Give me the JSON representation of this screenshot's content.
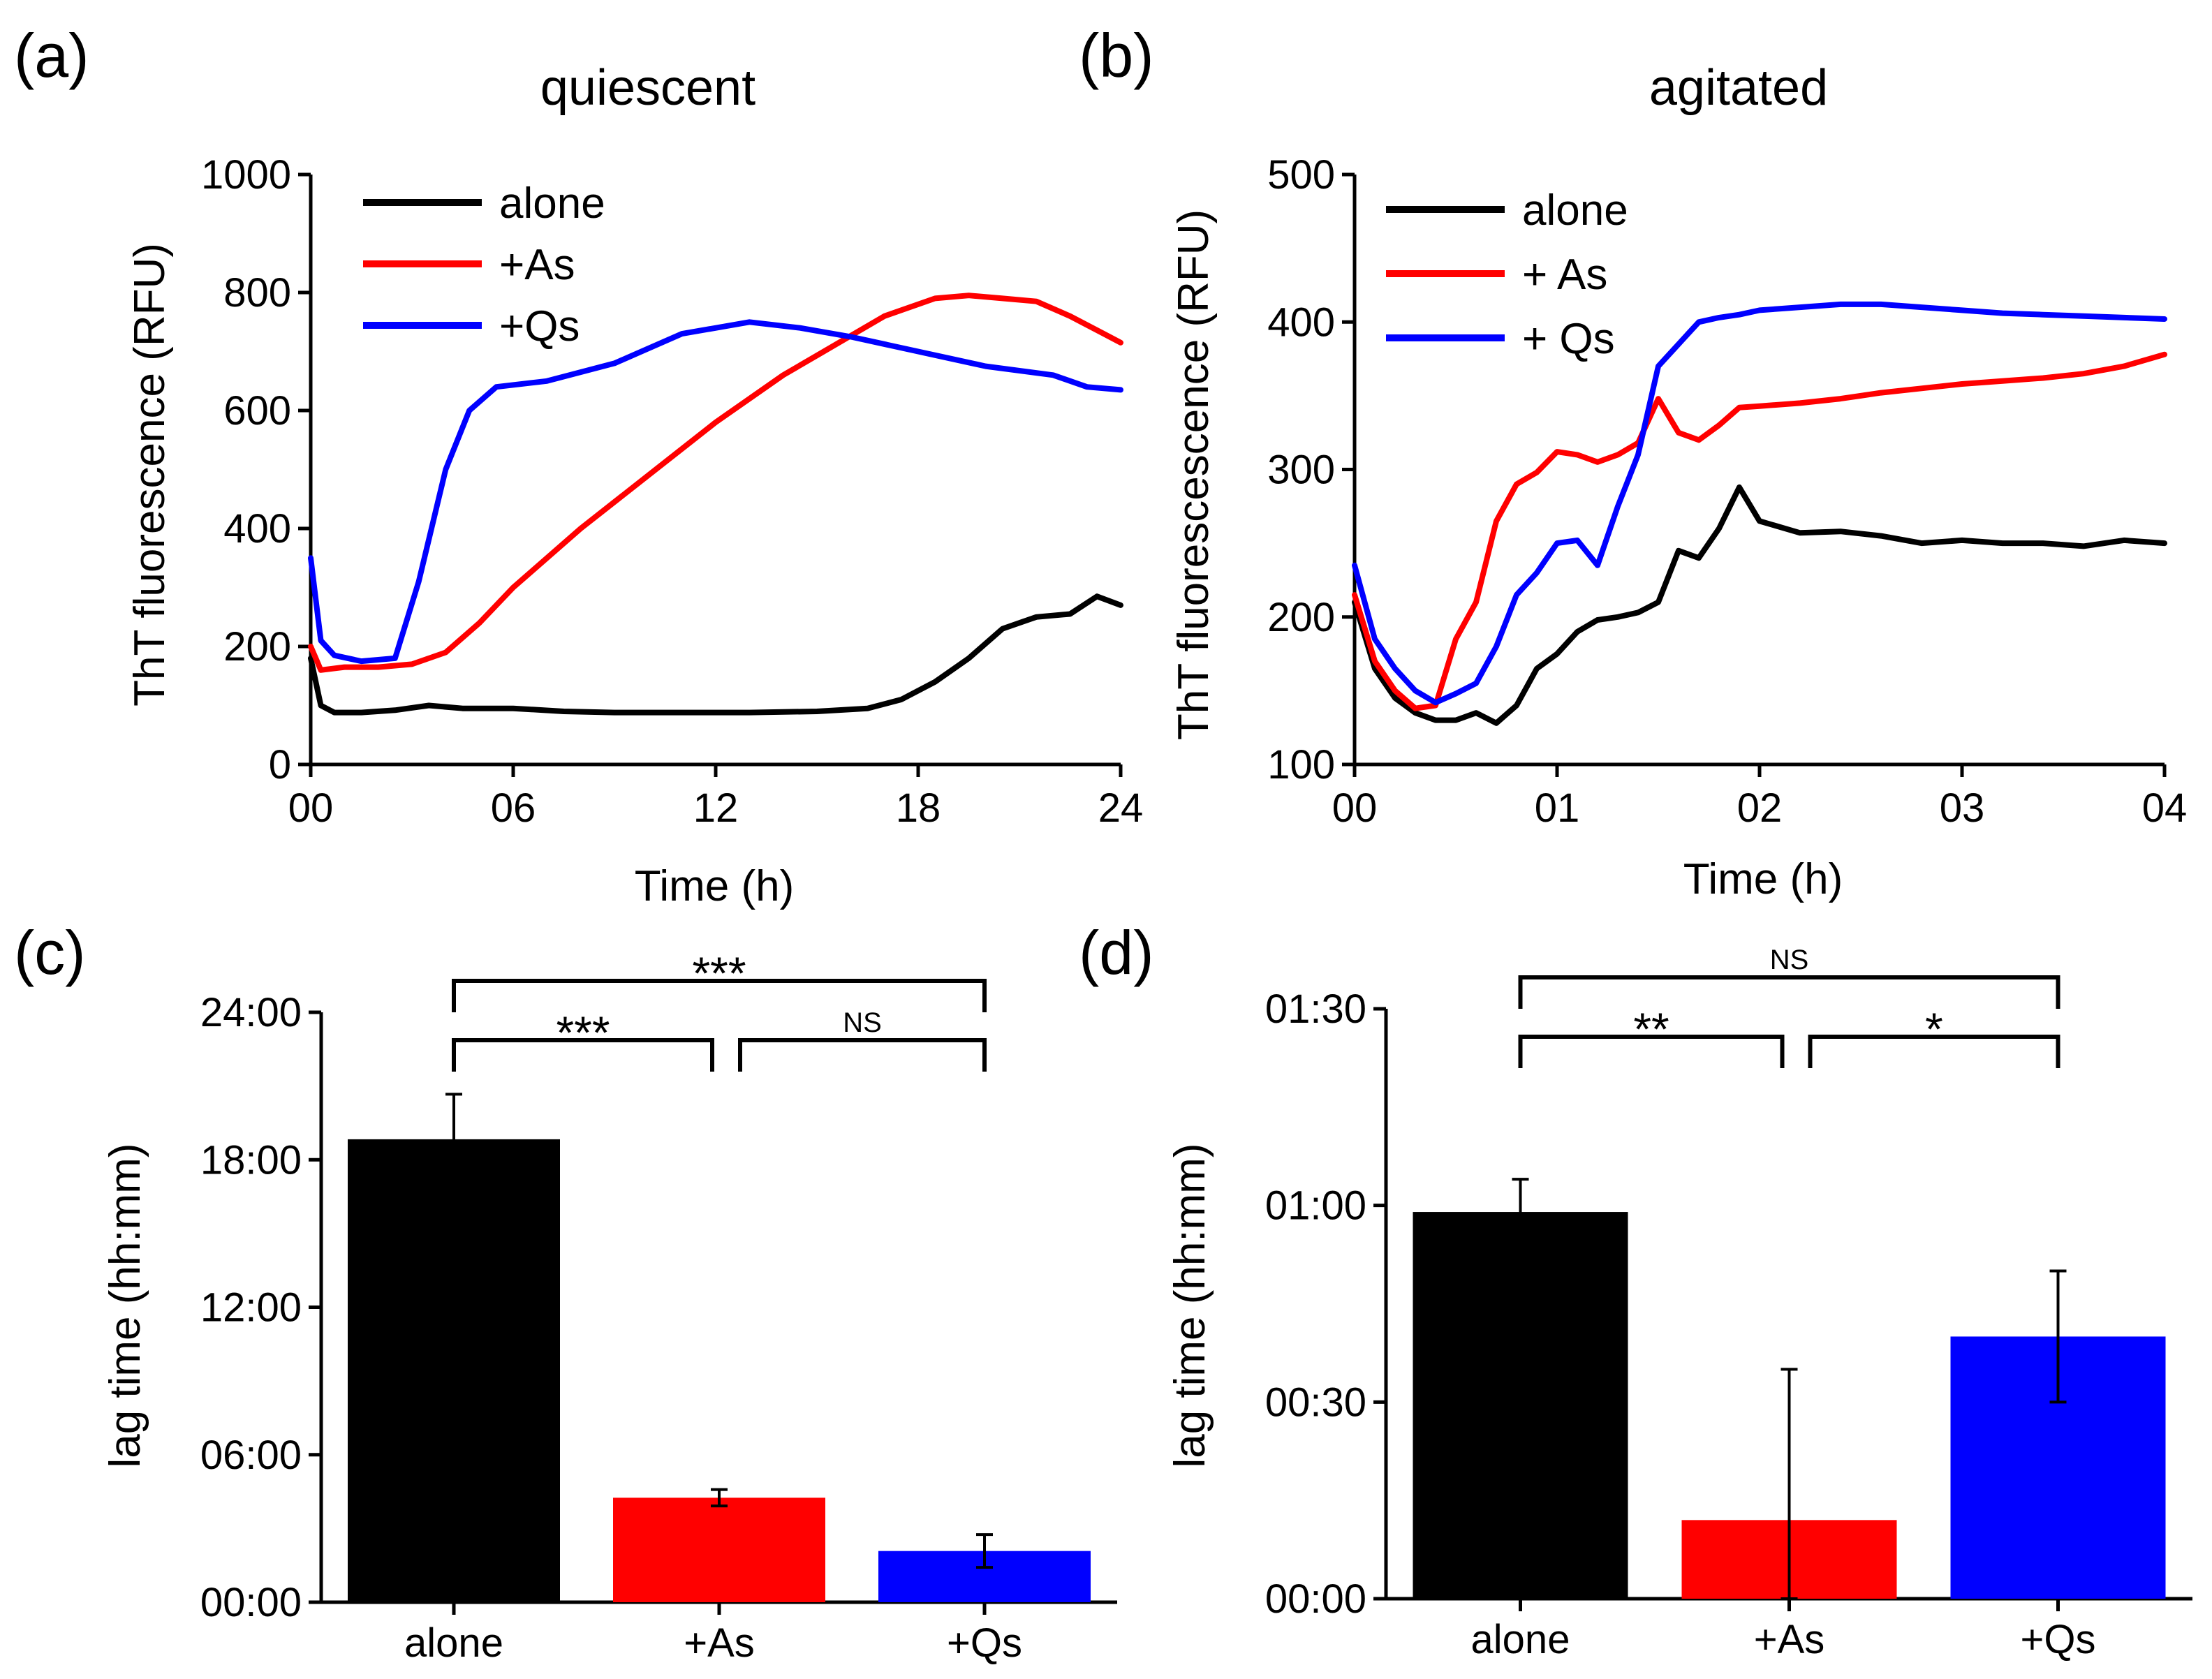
{
  "chart_data": [
    {
      "panel": "(a)",
      "type": "line",
      "title": "quiescent",
      "xlabel": "Time (h)",
      "ylabel": "ThT fluorescence (RFU)",
      "xlim": [
        0,
        24
      ],
      "ylim": [
        0,
        1000
      ],
      "xticks": [
        0,
        6,
        12,
        18,
        24
      ],
      "xtick_labels": [
        "00",
        "06",
        "12",
        "18",
        "24"
      ],
      "yticks": [
        0,
        200,
        400,
        600,
        800,
        1000
      ],
      "ytick_labels": [
        "0",
        "200",
        "400",
        "600",
        "800",
        "1000"
      ],
      "legend": "top-left",
      "series": [
        {
          "name": "alone",
          "color": "#000000",
          "x": [
            0,
            0.3,
            0.7,
            1.5,
            2.5,
            3.5,
            4.5,
            6,
            7.5,
            9,
            11,
            13,
            15,
            16.5,
            17.5,
            18.5,
            19.5,
            20.5,
            21.5,
            22.5,
            23.3,
            24
          ],
          "y": [
            180,
            100,
            88,
            88,
            92,
            100,
            95,
            95,
            90,
            88,
            88,
            88,
            90,
            95,
            110,
            140,
            180,
            230,
            250,
            255,
            285,
            270
          ]
        },
        {
          "name": "+As",
          "color": "#ff0000",
          "x": [
            0,
            0.3,
            1,
            2,
            3,
            4,
            5,
            6,
            8,
            10,
            12,
            14,
            15.5,
            17,
            18.5,
            19.5,
            20.5,
            21.5,
            22.5,
            23.5,
            24
          ],
          "y": [
            200,
            160,
            165,
            165,
            170,
            190,
            240,
            300,
            400,
            490,
            580,
            660,
            710,
            760,
            790,
            795,
            790,
            785,
            760,
            730,
            715
          ]
        },
        {
          "name": "+Qs",
          "color": "#0000ff",
          "x": [
            0,
            0.3,
            0.7,
            1.5,
            2.5,
            3.2,
            4,
            4.7,
            5.5,
            7,
            9,
            11,
            13,
            14.5,
            16,
            18,
            20,
            22,
            23,
            24
          ],
          "y": [
            350,
            210,
            185,
            175,
            180,
            310,
            500,
            600,
            640,
            650,
            680,
            730,
            750,
            740,
            725,
            700,
            675,
            660,
            640,
            635
          ]
        }
      ]
    },
    {
      "panel": "(b)",
      "type": "line",
      "title": "agitated",
      "xlabel": "Time (h)",
      "ylabel": "ThT fluorescescence (RFU)",
      "xlim": [
        0,
        4
      ],
      "ylim": [
        100,
        500
      ],
      "xticks": [
        0,
        1,
        2,
        3,
        4
      ],
      "xtick_labels": [
        "00",
        "01",
        "02",
        "03",
        "04"
      ],
      "yticks": [
        100,
        200,
        300,
        400,
        500
      ],
      "ytick_labels": [
        "100",
        "200",
        "300",
        "400",
        "500"
      ],
      "legend": "top-left",
      "series": [
        {
          "name": "alone",
          "color": "#000000",
          "x": [
            0,
            0.1,
            0.2,
            0.3,
            0.4,
            0.5,
            0.6,
            0.7,
            0.8,
            0.9,
            1.0,
            1.1,
            1.2,
            1.3,
            1.4,
            1.5,
            1.6,
            1.7,
            1.8,
            1.9,
            2.0,
            2.2,
            2.4,
            2.6,
            2.8,
            3.0,
            3.2,
            3.4,
            3.6,
            3.8,
            4.0
          ],
          "y": [
            210,
            165,
            145,
            135,
            130,
            130,
            135,
            128,
            140,
            165,
            175,
            190,
            198,
            200,
            203,
            210,
            245,
            240,
            260,
            288,
            265,
            257,
            258,
            255,
            250,
            252,
            250,
            250,
            248,
            252,
            250
          ]
        },
        {
          "name": "+ As",
          "color": "#ff0000",
          "x": [
            0,
            0.1,
            0.2,
            0.3,
            0.4,
            0.5,
            0.6,
            0.7,
            0.8,
            0.9,
            1.0,
            1.1,
            1.2,
            1.3,
            1.4,
            1.5,
            1.6,
            1.7,
            1.8,
            1.9,
            2.0,
            2.2,
            2.4,
            2.6,
            2.8,
            3.0,
            3.2,
            3.4,
            3.6,
            3.8,
            4.0
          ],
          "y": [
            215,
            170,
            150,
            138,
            140,
            185,
            210,
            265,
            290,
            298,
            312,
            310,
            305,
            310,
            318,
            348,
            325,
            320,
            330,
            342,
            343,
            345,
            348,
            352,
            355,
            358,
            360,
            362,
            365,
            370,
            378
          ]
        },
        {
          "name": "+ Qs",
          "color": "#0000ff",
          "x": [
            0,
            0.1,
            0.2,
            0.3,
            0.4,
            0.5,
            0.6,
            0.7,
            0.8,
            0.9,
            1.0,
            1.1,
            1.2,
            1.3,
            1.4,
            1.5,
            1.6,
            1.7,
            1.8,
            1.9,
            2.0,
            2.2,
            2.4,
            2.6,
            2.8,
            3.0,
            3.2,
            3.4,
            3.6,
            3.8,
            4.0
          ],
          "y": [
            235,
            185,
            165,
            150,
            142,
            148,
            155,
            180,
            215,
            230,
            250,
            252,
            235,
            275,
            310,
            370,
            385,
            400,
            403,
            405,
            408,
            410,
            412,
            412,
            410,
            408,
            406,
            405,
            404,
            403,
            402
          ]
        }
      ]
    },
    {
      "panel": "(c)",
      "type": "bar",
      "xlabel": "",
      "ylabel": "lag time (hh:mm)",
      "ylim": [
        0,
        1440
      ],
      "yticks": [
        0,
        360,
        720,
        1080,
        1440
      ],
      "ytick_labels": [
        "00:00",
        "06:00",
        "12:00",
        "18:00",
        "24:00"
      ],
      "categories": [
        "alone",
        "+As",
        "+Qs"
      ],
      "values": [
        1130,
        255,
        125
      ],
      "errors": [
        110,
        20,
        40
      ],
      "colors": [
        "#000000",
        "#ff0000",
        "#0000ff"
      ],
      "significance": [
        {
          "from": 0,
          "to": 1,
          "label": "***",
          "level": 1
        },
        {
          "from": 1,
          "to": 2,
          "label": "NS",
          "level": 1
        },
        {
          "from": 0,
          "to": 2,
          "label": "***",
          "level": 2
        }
      ]
    },
    {
      "panel": "(d)",
      "type": "bar",
      "xlabel": "",
      "ylabel": "lag time (hh:mm)",
      "ylim": [
        0,
        90
      ],
      "yticks": [
        0,
        30,
        60,
        90
      ],
      "ytick_labels": [
        "00:00",
        "00:30",
        "01:00",
        "01:30"
      ],
      "categories": [
        "alone",
        "+As",
        "+Qs"
      ],
      "values": [
        59,
        12,
        40
      ],
      "errors": [
        5,
        23,
        10
      ],
      "colors": [
        "#000000",
        "#ff0000",
        "#0000ff"
      ],
      "significance": [
        {
          "from": 0,
          "to": 1,
          "label": "**",
          "level": 1
        },
        {
          "from": 1,
          "to": 2,
          "label": "*",
          "level": 1
        },
        {
          "from": 0,
          "to": 2,
          "label": "NS",
          "level": 2
        }
      ]
    }
  ]
}
